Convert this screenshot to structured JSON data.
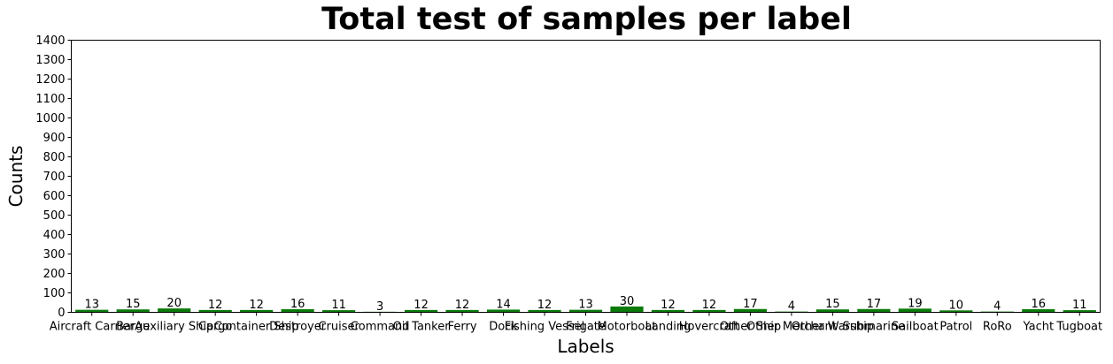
{
  "chart_data": {
    "type": "bar",
    "title": "Total test of samples per label",
    "xlabel": "Labels",
    "ylabel": "Counts",
    "ylim": [
      0,
      1400
    ],
    "yticks": [
      0,
      100,
      200,
      300,
      400,
      500,
      600,
      700,
      800,
      900,
      1000,
      1100,
      1200,
      1300,
      1400
    ],
    "bar_color": "#0a7a0a",
    "grid": false,
    "categories": [
      "Aircraft Carrier",
      "Barge",
      "Auxiliary Ship",
      "Cargo",
      "Container Ship",
      "Destroyer",
      "Cruiser",
      "Command",
      "Oil Tanker",
      "Ferry",
      "Dock",
      "Fishing Vessel",
      "Frigate",
      "Motorboat",
      "Landing",
      "Hovercraft",
      "Other Ship",
      "Other Merchant",
      "Other Warship",
      "Submarine",
      "Sailboat",
      "Patrol",
      "RoRo",
      "Yacht",
      "Tugboat"
    ],
    "values": [
      13,
      15,
      20,
      12,
      12,
      16,
      11,
      3,
      12,
      12,
      14,
      12,
      13,
      30,
      12,
      12,
      17,
      4,
      15,
      17,
      19,
      10,
      4,
      16,
      11
    ]
  }
}
